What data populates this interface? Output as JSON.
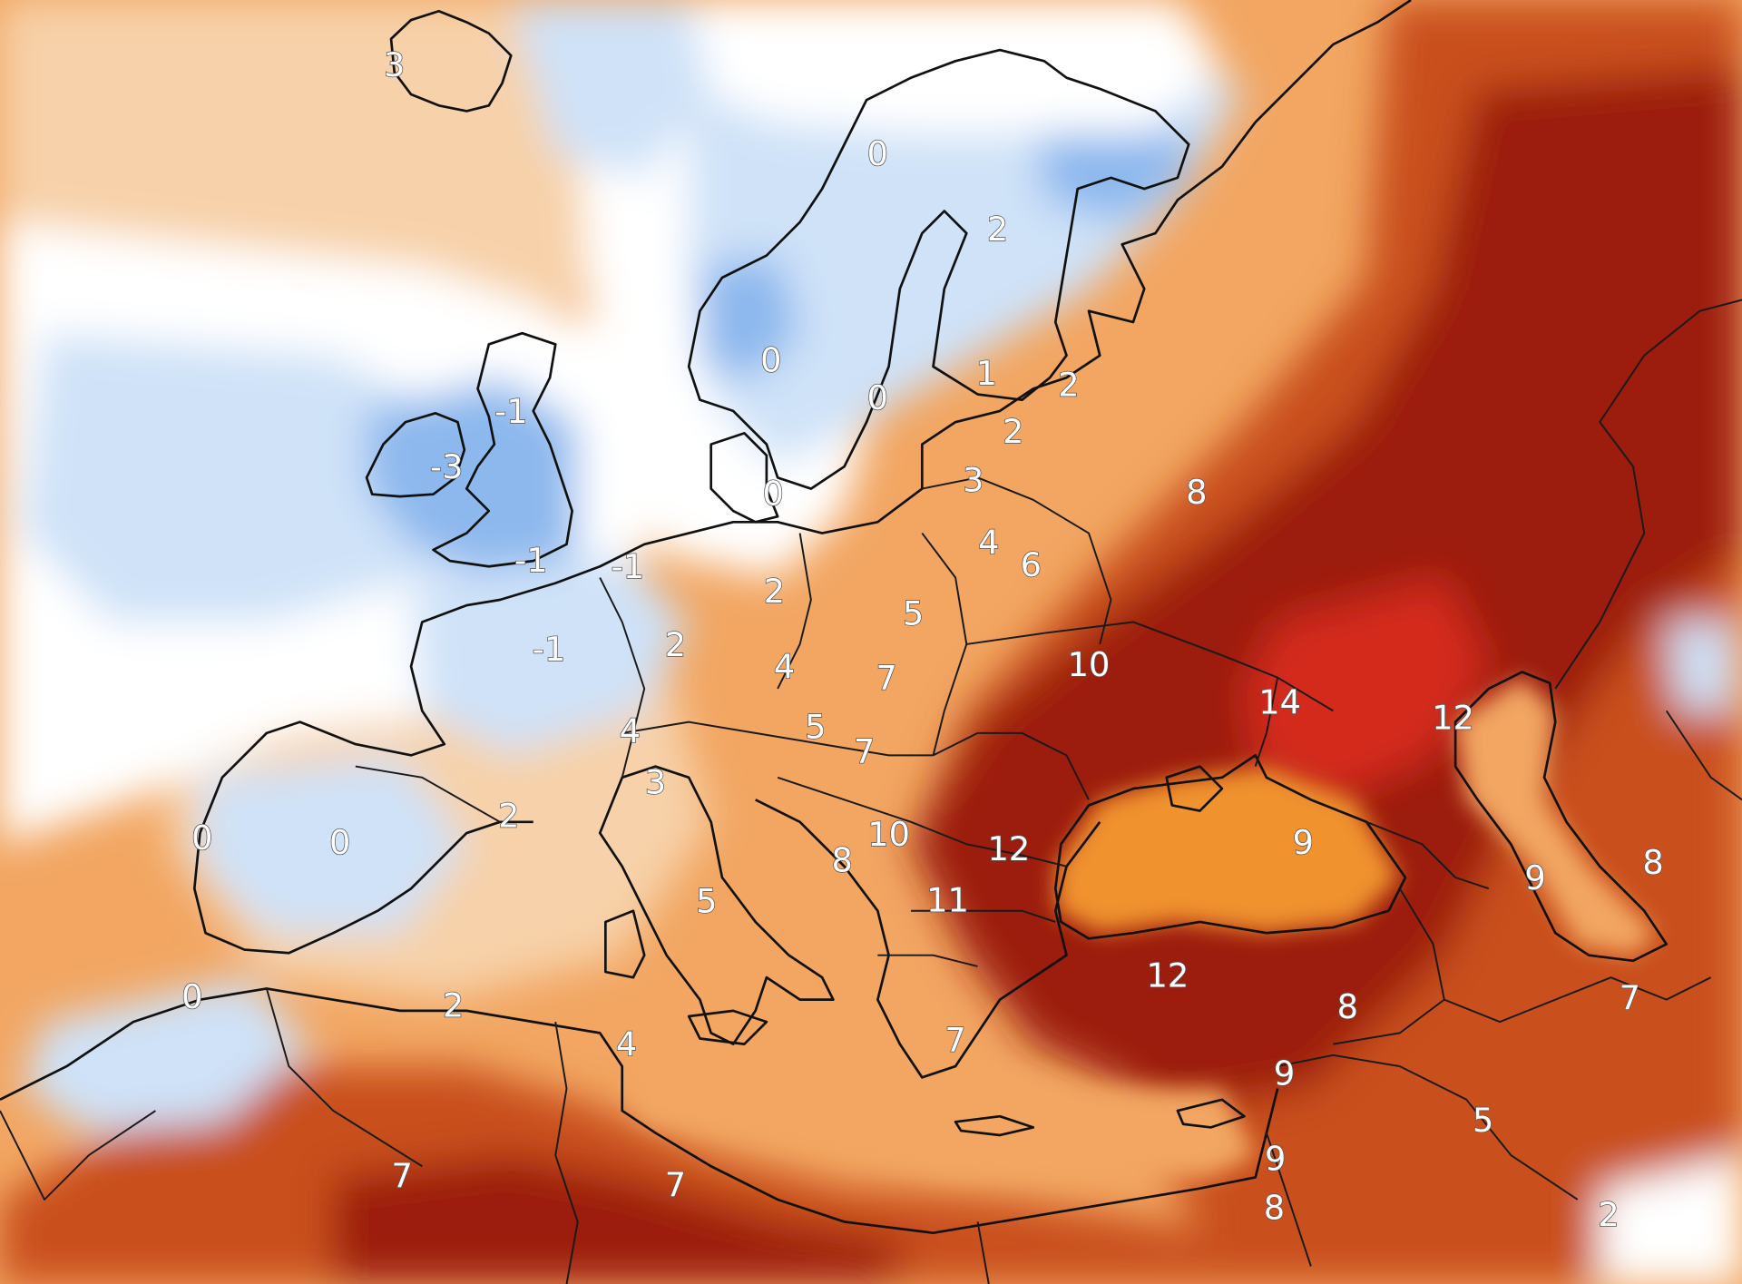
{
  "map": {
    "type": "temperature-anomaly",
    "colors": {
      "cold_deep": "#4a7fd8",
      "cold": "#8cb8ee",
      "cool": "#cfe2f8",
      "neutral": "#ffffff",
      "warm_light": "#f7d1a9",
      "warm": "#f2a662",
      "warm_mid": "#e8832a",
      "hot": "#c9501c",
      "very_hot": "#9c1c10",
      "extreme": "#d42a1e",
      "sea_black": "#f0922f"
    },
    "labels": [
      {
        "id": "iceland",
        "text": "3"
      },
      {
        "id": "n-norway",
        "text": "0"
      },
      {
        "id": "finland-n",
        "text": "2"
      },
      {
        "id": "norway-s",
        "text": "0"
      },
      {
        "id": "sweden-s",
        "text": "0"
      },
      {
        "id": "finland-s",
        "text": "1"
      },
      {
        "id": "estonia",
        "text": "2"
      },
      {
        "id": "gulf-finland",
        "text": "2"
      },
      {
        "id": "scotland",
        "text": "-1"
      },
      {
        "id": "ireland",
        "text": "-3"
      },
      {
        "id": "denmark",
        "text": "0"
      },
      {
        "id": "latvia",
        "text": "3"
      },
      {
        "id": "lithuania",
        "text": "4"
      },
      {
        "id": "belarus-n",
        "text": "6"
      },
      {
        "id": "russia-w",
        "text": "8"
      },
      {
        "id": "england",
        "text": "-1"
      },
      {
        "id": "benelux",
        "text": "-1"
      },
      {
        "id": "germany-n",
        "text": "2"
      },
      {
        "id": "poland",
        "text": "5"
      },
      {
        "id": "france-n",
        "text": "-1"
      },
      {
        "id": "germany-s",
        "text": "2"
      },
      {
        "id": "czechia",
        "text": "4"
      },
      {
        "id": "slovakia",
        "text": "7"
      },
      {
        "id": "ukraine-n",
        "text": "10"
      },
      {
        "id": "russia-s",
        "text": "14"
      },
      {
        "id": "caspian-n",
        "text": "12"
      },
      {
        "id": "switzerland",
        "text": "4"
      },
      {
        "id": "austria",
        "text": "5"
      },
      {
        "id": "hungary",
        "text": "7"
      },
      {
        "id": "alps-s",
        "text": "3"
      },
      {
        "id": "pyrenees",
        "text": "2"
      },
      {
        "id": "portugal",
        "text": "0"
      },
      {
        "id": "spain",
        "text": "0"
      },
      {
        "id": "serbia",
        "text": "10"
      },
      {
        "id": "bosnia",
        "text": "8"
      },
      {
        "id": "romania",
        "text": "12"
      },
      {
        "id": "black-sea-e",
        "text": "9"
      },
      {
        "id": "caspian-w",
        "text": "9"
      },
      {
        "id": "kazakh-w",
        "text": "8"
      },
      {
        "id": "bulgaria",
        "text": "11"
      },
      {
        "id": "italy",
        "text": "5"
      },
      {
        "id": "morocco-n",
        "text": "0"
      },
      {
        "id": "algeria-n",
        "text": "2"
      },
      {
        "id": "turkey",
        "text": "12"
      },
      {
        "id": "turkey-e",
        "text": "8"
      },
      {
        "id": "iran-n",
        "text": "7"
      },
      {
        "id": "tunisia",
        "text": "4"
      },
      {
        "id": "greece",
        "text": "7"
      },
      {
        "id": "syria",
        "text": "9"
      },
      {
        "id": "iraq",
        "text": "5"
      },
      {
        "id": "algeria-s",
        "text": "7"
      },
      {
        "id": "libya",
        "text": "7"
      },
      {
        "id": "israel",
        "text": "9"
      },
      {
        "id": "jordan",
        "text": "8"
      },
      {
        "id": "gulf",
        "text": "2"
      }
    ]
  }
}
